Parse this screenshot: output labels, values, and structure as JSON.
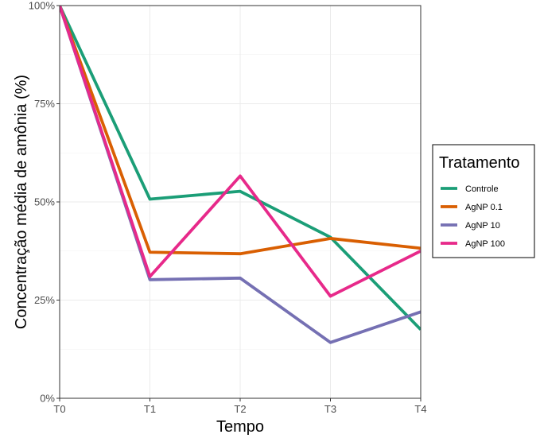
{
  "chart_data": {
    "type": "line",
    "xlabel": "Tempo",
    "ylabel": "Concentração média de amônia (%)",
    "categories": [
      "T0",
      "T1",
      "T2",
      "T3",
      "T4"
    ],
    "ylim": [
      0,
      100
    ],
    "yticks": [
      0,
      25,
      50,
      75,
      100
    ],
    "ytick_labels": [
      "0%",
      "25%",
      "50%",
      "75%",
      "100%"
    ],
    "grid": true,
    "legend": {
      "title": "Tratamento",
      "placement": "right"
    },
    "series": [
      {
        "name": "Controle",
        "color": "#1b9e77",
        "values": [
          100,
          50.7,
          52.7,
          41.0,
          17.5
        ]
      },
      {
        "name": "AgNP 0.1",
        "color": "#d95f02",
        "values": [
          100,
          37.2,
          36.8,
          40.7,
          38.2
        ]
      },
      {
        "name": "AgNP 10",
        "color": "#7570b3",
        "values": [
          100,
          30.2,
          30.6,
          14.2,
          22.0
        ]
      },
      {
        "name": "AgNP 100",
        "color": "#e7298a",
        "values": [
          100,
          31.0,
          56.6,
          26.0,
          37.5
        ]
      }
    ]
  }
}
